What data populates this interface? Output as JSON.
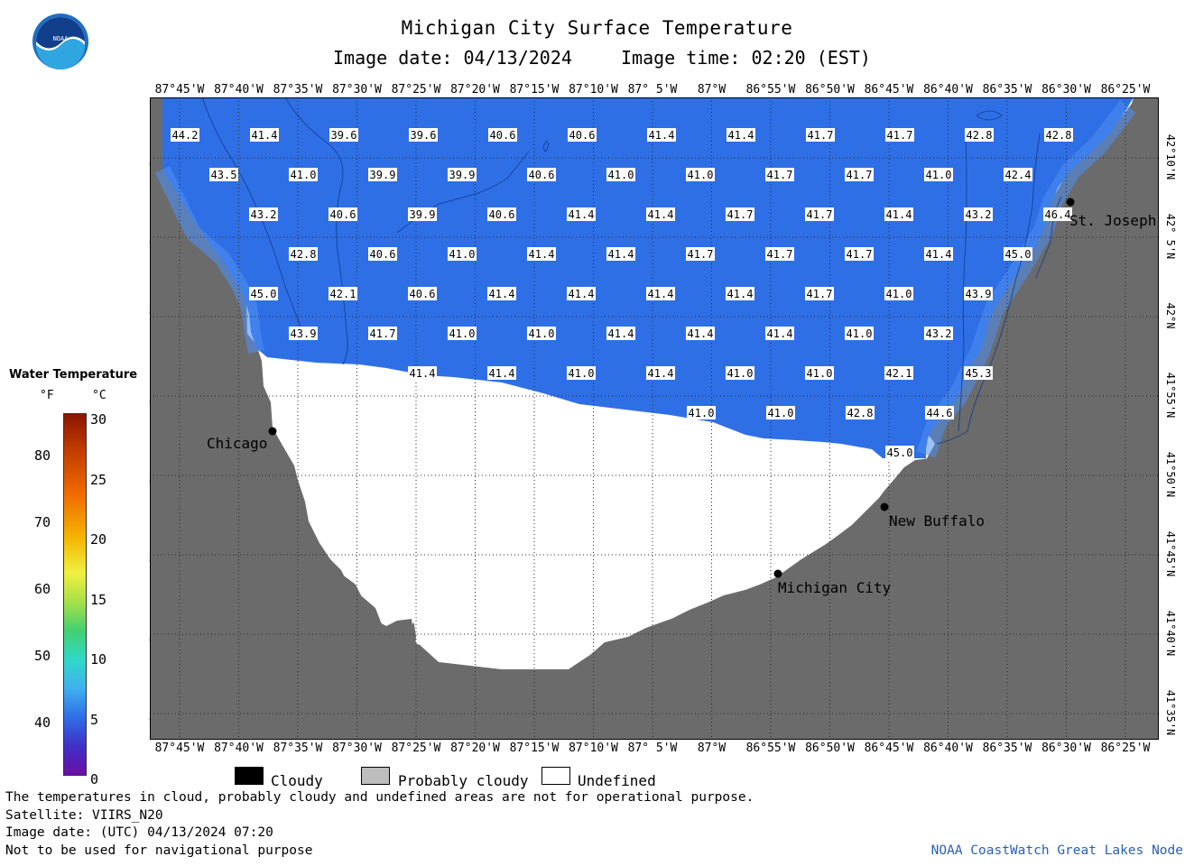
{
  "header": {
    "logo_text": "NOAA",
    "title": "Michigan City Surface Temperature",
    "image_date": "Image date: 04/13/2024",
    "image_time": "Image time: 02:20 (EST)"
  },
  "longitude_labels": [
    "87°45'W",
    "87°40'W",
    "87°35'W",
    "87°30'W",
    "87°25'W",
    "87°20'W",
    "87°15'W",
    "87°10'W",
    "87° 5'W",
    "87°W",
    "86°55'W",
    "86°50'W",
    "86°45'W",
    "86°40'W",
    "86°35'W",
    "86°30'W",
    "86°25'W"
  ],
  "latitude_labels": [
    "42°10'N",
    "42° 5'N",
    "42°N",
    "41°55'N",
    "41°50'N",
    "41°45'N",
    "41°40'N",
    "41°35'N"
  ],
  "colorbar": {
    "title": "Water Temperature",
    "unit_f": "°F",
    "unit_c": "°C",
    "f_ticks": [
      "80",
      "70",
      "60",
      "50",
      "40"
    ],
    "c_ticks": [
      "30",
      "25",
      "20",
      "15",
      "10",
      "5",
      "0"
    ]
  },
  "cities": [
    {
      "name": "Chicago"
    },
    {
      "name": "St. Joseph"
    },
    {
      "name": "New Buffalo"
    },
    {
      "name": "Michigan City"
    }
  ],
  "temperature_grid": [
    [
      "44.2",
      "41.4",
      "39.6",
      "39.6",
      "40.6",
      "40.6",
      "41.4",
      "41.4",
      "41.7",
      "41.7",
      "42.8",
      "42.8"
    ],
    [
      "43.5",
      "41.0",
      "39.9",
      "39.9",
      "40.6",
      "41.0",
      "41.0",
      "41.7",
      "41.7",
      "41.0",
      "42.4"
    ],
    [
      "43.2",
      "40.6",
      "39.9",
      "40.6",
      "41.4",
      "41.4",
      "41.7",
      "41.7",
      "41.4",
      "43.2",
      "46.4"
    ],
    [
      "42.8",
      "40.6",
      "41.0",
      "41.4",
      "41.4",
      "41.7",
      "41.7",
      "41.7",
      "41.4",
      "45.0"
    ],
    [
      "45.0",
      "42.1",
      "40.6",
      "41.4",
      "41.4",
      "41.4",
      "41.4",
      "41.7",
      "41.0",
      "43.9"
    ],
    [
      "43.9",
      "41.7",
      "41.0",
      "41.0",
      "41.4",
      "41.4",
      "41.4",
      "41.0",
      "43.2"
    ],
    [
      "41.4",
      "41.4",
      "41.0",
      "41.4",
      "41.0",
      "41.0",
      "42.1",
      "45.3"
    ],
    [
      "41.0",
      "41.0",
      "42.8",
      "44.6"
    ],
    [
      "45.0"
    ]
  ],
  "legend": {
    "cloudy": "Cloudy",
    "probably_cloudy": "Probably cloudy",
    "undefined": "Undefined",
    "colors": {
      "cloudy": "#000000",
      "probably_cloudy": "#bdbdbd",
      "undefined": "#ffffff"
    }
  },
  "notes": {
    "line1": "The temperatures in cloud, probably cloudy and undefined areas are not for operational purpose.",
    "line2": "Satellite: VIIRS_N20",
    "line3": "Image date: (UTC) 04/13/2024  07:20",
    "line4": "Not to be used for navigational purpose",
    "credit": "NOAA CoastWatch Great Lakes Node"
  },
  "colors": {
    "land": "#6b6b6b",
    "water": "#2f6fe6",
    "frame": "#000000"
  }
}
